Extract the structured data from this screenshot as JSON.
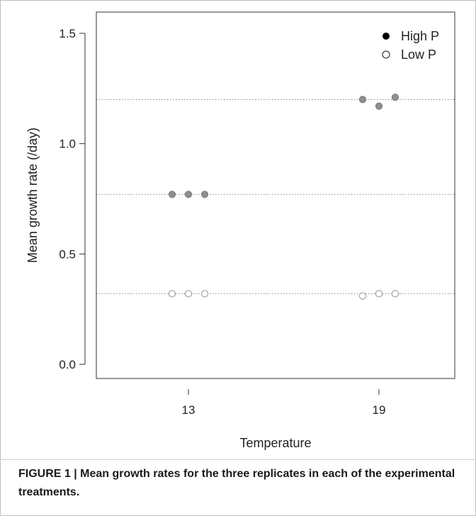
{
  "chart_data": {
    "type": "scatter",
    "xlabel": "Temperature",
    "ylabel": "Mean growth rate (/day)",
    "categories": [
      "13",
      "19"
    ],
    "ylim": [
      -0.05,
      1.6
    ],
    "yticks": [
      0.0,
      0.5,
      1.0,
      1.5
    ],
    "ytick_labels": [
      "0.0",
      "0.5",
      "1.0",
      "1.5"
    ],
    "grid": false,
    "legend_position": "top-right",
    "reference_lines": [
      0.32,
      0.77,
      1.2
    ],
    "series": [
      {
        "name": "High P",
        "marker": "filled",
        "points": [
          {
            "x": "13",
            "replicate": 1,
            "y": 0.77
          },
          {
            "x": "13",
            "replicate": 2,
            "y": 0.77
          },
          {
            "x": "13",
            "replicate": 3,
            "y": 0.77
          },
          {
            "x": "19",
            "replicate": 1,
            "y": 1.2
          },
          {
            "x": "19",
            "replicate": 2,
            "y": 1.17
          },
          {
            "x": "19",
            "replicate": 3,
            "y": 1.21
          }
        ]
      },
      {
        "name": "Low P",
        "marker": "open",
        "points": [
          {
            "x": "13",
            "replicate": 1,
            "y": 0.32
          },
          {
            "x": "13",
            "replicate": 2,
            "y": 0.32
          },
          {
            "x": "13",
            "replicate": 3,
            "y": 0.32
          },
          {
            "x": "19",
            "replicate": 1,
            "y": 0.31
          },
          {
            "x": "19",
            "replicate": 2,
            "y": 0.32
          },
          {
            "x": "19",
            "replicate": 3,
            "y": 0.32
          }
        ]
      }
    ],
    "colors": {
      "high_p_fill": "#8f8f8f",
      "high_p_stroke": "#7a7a7a",
      "low_p_stroke": "#9a9a9a",
      "reference_line": "#9a9a9a",
      "axis": "#333333",
      "legend_filled": "#000000"
    }
  },
  "caption": {
    "text": "FIGURE 1 | Mean growth rates for the three replicates in each of the experimental treatments."
  }
}
